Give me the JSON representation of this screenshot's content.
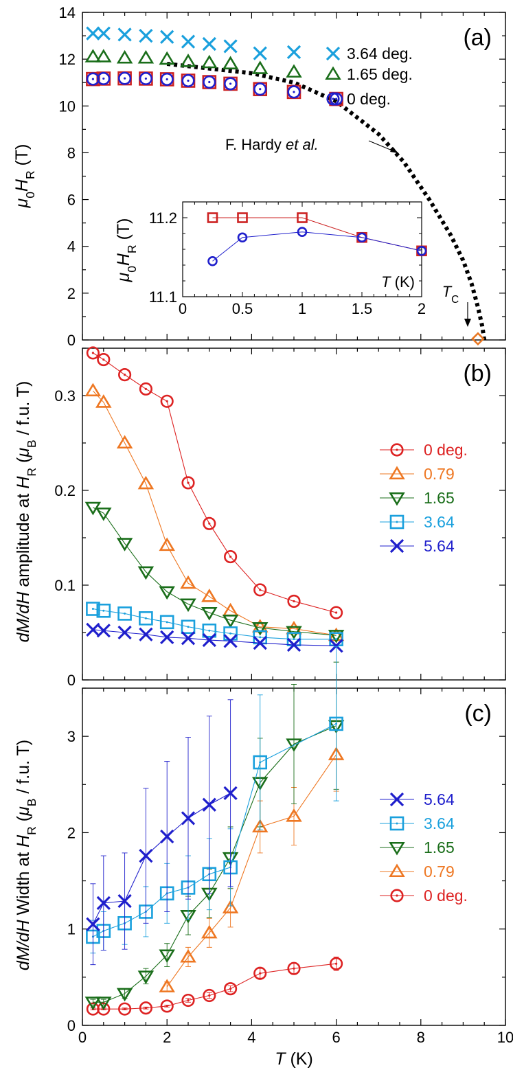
{
  "chart_data": [
    {
      "panel": "(a)",
      "type": "scatter",
      "ylabel": "μ0HR (T)",
      "xlim": [
        0,
        10
      ],
      "ylim": [
        0,
        14
      ],
      "x_ticks": [
        0,
        2,
        4,
        6,
        8,
        10
      ],
      "y_ticks": [
        0,
        2,
        4,
        6,
        8,
        10,
        12,
        14
      ],
      "y_tick_labels": [
        "0",
        "2",
        "4",
        "6",
        "8",
        "10",
        "12",
        "14"
      ],
      "legend_position": "top-right",
      "series": [
        {
          "name": "3.64 deg.",
          "marker": "x",
          "color": "#1aa0dd",
          "x": [
            0.25,
            0.5,
            1.0,
            1.5,
            2.0,
            2.5,
            3.0,
            3.5,
            4.2,
            5.0
          ],
          "y": [
            13.1,
            13.1,
            13.05,
            13.0,
            12.95,
            12.75,
            12.65,
            12.55,
            12.25,
            12.3
          ]
        },
        {
          "name": "1.65 deg.",
          "marker": "triangle-up",
          "color": "#1a6e1a",
          "x": [
            0.25,
            0.5,
            1.0,
            1.5,
            2.0,
            2.5,
            3.0,
            3.5,
            4.2,
            5.0
          ],
          "y": [
            12.1,
            12.1,
            12.05,
            12.05,
            12.0,
            11.9,
            11.85,
            11.8,
            11.6,
            11.45
          ]
        },
        {
          "name": "0 deg.",
          "marker": "circle-dot",
          "color": "#1f1fcc",
          "x": [
            0.25,
            0.5,
            1.0,
            1.5,
            2.0,
            2.5,
            3.0,
            3.5,
            4.2,
            5.0,
            6.0
          ],
          "y": [
            11.15,
            11.17,
            11.18,
            11.17,
            11.14,
            11.08,
            11.02,
            10.95,
            10.72,
            10.6,
            10.3
          ]
        },
        {
          "name": "",
          "marker": "square",
          "color": "#cc2222",
          "x": [
            0.25,
            0.5,
            1.0,
            1.5,
            2.0,
            2.5,
            3.0,
            3.5,
            4.2,
            5.0,
            6.0
          ],
          "y": [
            11.15,
            11.17,
            11.18,
            11.17,
            11.14,
            11.08,
            11.02,
            10.95,
            10.72,
            10.6,
            10.3
          ]
        },
        {
          "name": "F. Hardy et al.",
          "style": "dotted-line",
          "color": "#000000",
          "x": [
            2.0,
            3.0,
            4.0,
            5.0,
            6.0,
            7.0,
            7.6,
            8.2,
            8.7,
            9.0,
            9.2,
            9.35,
            9.45,
            9.5
          ],
          "y": [
            11.8,
            11.6,
            11.4,
            11.0,
            10.2,
            8.8,
            7.6,
            6.0,
            4.5,
            3.4,
            2.4,
            1.4,
            0.6,
            0.0
          ]
        },
        {
          "name": "TC",
          "marker": "diamond",
          "color": "#e87722",
          "x": [
            9.35
          ],
          "y": [
            0.05
          ]
        }
      ],
      "annotations": [
        {
          "text": "F. Hardy",
          "text_italic": "et al."
        },
        {
          "text": "T",
          "subscript": "C"
        }
      ],
      "inset": {
        "type": "line",
        "xlim": [
          0,
          2
        ],
        "ylim": [
          11.1,
          11.22
        ],
        "x_ticks": [
          0,
          0.5,
          1,
          1.5,
          2
        ],
        "x_tick_labels": [
          "0",
          "0.5",
          "1",
          "1.5",
          "2"
        ],
        "y_ticks": [
          11.1,
          11.2
        ],
        "y_tick_labels": [
          "11.1",
          "11.2"
        ],
        "xlabel": "T (K)",
        "ylabel": "μ0HR (T)",
        "series": [
          {
            "name": "",
            "marker": "square",
            "color": "#cc2222",
            "x": [
              0.25,
              0.5,
              1.0,
              1.5,
              2.0
            ],
            "y": [
              11.2,
              11.2,
              11.2,
              11.175,
              11.158
            ]
          },
          {
            "name": "",
            "marker": "circle",
            "color": "#1f1fcc",
            "x": [
              0.25,
              0.5,
              1.0,
              1.5,
              2.0
            ],
            "y": [
              11.145,
              11.175,
              11.182,
              11.175,
              11.158
            ]
          }
        ]
      }
    },
    {
      "panel": "(b)",
      "type": "line",
      "ylabel": "dM/dH amplitude at HR (μB / f.u. T)",
      "xlim": [
        0,
        10
      ],
      "ylim": [
        0,
        0.35
      ],
      "y_ticks": [
        0,
        0.1,
        0.2,
        0.3
      ],
      "y_tick_labels": [
        "0",
        "0.1",
        "0.2",
        "0.3"
      ],
      "legend_position": "right",
      "series": [
        {
          "name": "0 deg.",
          "marker": "circle-dot",
          "color": "#dd2222",
          "x": [
            0.25,
            0.5,
            1.0,
            1.5,
            2.0,
            2.5,
            3.0,
            3.5,
            4.2,
            5.0,
            6.0
          ],
          "y": [
            0.345,
            0.338,
            0.322,
            0.307,
            0.294,
            0.208,
            0.165,
            0.13,
            0.095,
            0.083,
            0.071
          ]
        },
        {
          "name": "0.79",
          "marker": "triangle-up",
          "color": "#ee7722",
          "x": [
            0.25,
            0.5,
            1.0,
            1.5,
            2.0,
            2.5,
            3.0,
            3.5,
            4.2,
            5.0,
            6.0
          ],
          "y": [
            0.305,
            0.293,
            0.25,
            0.207,
            0.142,
            0.102,
            0.088,
            0.073,
            0.056,
            0.054,
            0.047
          ]
        },
        {
          "name": "1.65",
          "marker": "triangle-down",
          "color": "#1a6e1a",
          "x": [
            0.25,
            0.5,
            1.0,
            1.5,
            2.0,
            2.5,
            3.0,
            3.5,
            4.2,
            5.0,
            6.0
          ],
          "y": [
            0.182,
            0.176,
            0.144,
            0.114,
            0.093,
            0.08,
            0.071,
            0.063,
            0.055,
            0.051,
            0.047
          ]
        },
        {
          "name": "3.64",
          "marker": "square-dot",
          "color": "#1aa0dd",
          "x": [
            0.25,
            0.5,
            1.0,
            1.5,
            2.0,
            2.5,
            3.0,
            3.5,
            4.2,
            5.0,
            6.0
          ],
          "y": [
            0.075,
            0.073,
            0.07,
            0.065,
            0.061,
            0.056,
            0.052,
            0.049,
            0.045,
            0.043,
            0.043
          ]
        },
        {
          "name": "5.64",
          "marker": "x",
          "color": "#1f1fcc",
          "x": [
            0.25,
            0.5,
            1.0,
            1.5,
            2.0,
            2.5,
            3.0,
            3.5,
            4.2,
            5.0,
            6.0
          ],
          "y": [
            0.053,
            0.052,
            0.05,
            0.048,
            0.045,
            0.044,
            0.042,
            0.041,
            0.039,
            0.037,
            0.036
          ]
        }
      ]
    },
    {
      "panel": "(c)",
      "type": "line",
      "xlabel": "T (K)",
      "ylabel": "dM/dH Width at HR (μB / f.u. T)",
      "xlim": [
        0,
        10
      ],
      "ylim": [
        0,
        3.5
      ],
      "x_ticks": [
        0,
        2,
        4,
        6,
        8,
        10
      ],
      "x_tick_labels": [
        "0",
        "2",
        "4",
        "6",
        "8",
        "10"
      ],
      "y_ticks": [
        0,
        1,
        2,
        3
      ],
      "y_tick_labels": [
        "0",
        "1",
        "2",
        "3"
      ],
      "legend_position": "right",
      "series": [
        {
          "name": "5.64",
          "marker": "x",
          "color": "#1f1fcc",
          "x": [
            0.25,
            0.5,
            1.0,
            1.5,
            2.0,
            2.5,
            3.0,
            3.5
          ],
          "y": [
            1.05,
            1.27,
            1.29,
            1.76,
            1.96,
            2.15,
            2.29,
            2.41
          ],
          "err": [
            0.42,
            0.49,
            0.5,
            0.7,
            0.78,
            0.84,
            0.92,
            0.97
          ]
        },
        {
          "name": "3.64",
          "marker": "square-dot",
          "color": "#1aa0dd",
          "x": [
            0.25,
            0.5,
            1.0,
            1.5,
            2.0,
            2.5,
            3.0,
            3.5,
            4.2,
            6.0
          ],
          "y": [
            0.92,
            0.98,
            1.06,
            1.18,
            1.37,
            1.43,
            1.57,
            1.64,
            2.73,
            3.13
          ],
          "err": [
            0.17,
            0.2,
            0.22,
            0.26,
            0.31,
            0.33,
            0.37,
            0.4,
            0.7,
            0.8
          ]
        },
        {
          "name": "1.65",
          "marker": "triangle-down",
          "color": "#1a6e1a",
          "x": [
            0.25,
            0.5,
            1.0,
            1.5,
            2.0,
            2.5,
            3.0,
            3.5,
            4.2,
            5.0,
            6.0
          ],
          "y": [
            0.24,
            0.24,
            0.33,
            0.51,
            0.73,
            1.14,
            1.37,
            1.74,
            2.52,
            2.92,
            3.11
          ],
          "err": [
            0.03,
            0.03,
            0.05,
            0.08,
            0.12,
            0.2,
            0.25,
            0.32,
            0.46,
            0.62,
            0.66
          ]
        },
        {
          "name": "0.79",
          "marker": "triangle-up",
          "color": "#ee7722",
          "x": [
            2.0,
            2.5,
            3.0,
            3.5,
            4.2,
            5.0,
            6.0
          ],
          "y": [
            0.4,
            0.71,
            0.96,
            1.22,
            2.06,
            2.17,
            2.81
          ],
          "err": [
            0.05,
            0.1,
            0.15,
            0.2,
            0.27,
            0.3,
            0.38
          ]
        },
        {
          "name": "0 deg.",
          "marker": "circle-dot",
          "color": "#dd2222",
          "x": [
            0.25,
            0.5,
            1.0,
            1.5,
            2.0,
            2.5,
            3.0,
            3.5,
            4.2,
            5.0,
            6.0
          ],
          "y": [
            0.17,
            0.17,
            0.17,
            0.18,
            0.2,
            0.26,
            0.31,
            0.38,
            0.54,
            0.59,
            0.64
          ],
          "err": [
            0.01,
            0.01,
            0.01,
            0.01,
            0.01,
            0.02,
            0.03,
            0.03,
            0.05,
            0.06,
            0.07
          ]
        }
      ]
    }
  ]
}
